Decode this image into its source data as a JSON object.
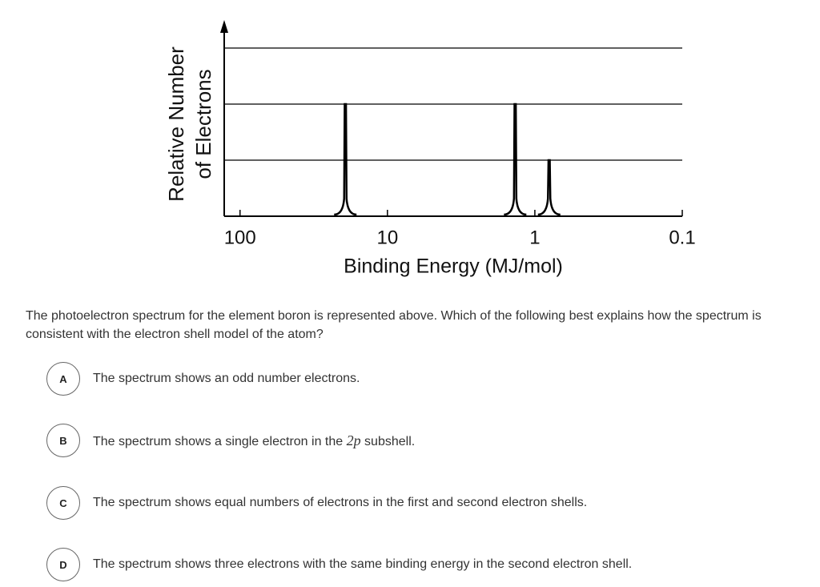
{
  "figure": {
    "chart_data": {
      "type": "spectrum",
      "y_label": [
        "Relative Number",
        "of Electrons"
      ],
      "x_label": "Binding Energy (MJ/mol)",
      "x": [
        19.3,
        1.36,
        0.8
      ],
      "values": [
        2,
        2,
        1
      ],
      "xlim": [
        128,
        0.1
      ],
      "xticks": [
        100,
        10,
        1,
        0.1
      ],
      "xscale": "log",
      "ylim": [
        0,
        3.5
      ],
      "yticks": [
        1,
        2,
        3
      ],
      "grid": true,
      "color": "#000000"
    }
  },
  "question": "The photoelectron spectrum for the element boron is represented above. Which of the following best explains how the spectrum is consistent with the electron shell model of the atom?",
  "options": [
    {
      "letter": "A",
      "text": [
        "The spectrum shows an odd number electrons."
      ]
    },
    {
      "letter": "B",
      "text": [
        "The spectrum shows a single electron in the ",
        "2p",
        " subshell."
      ]
    },
    {
      "letter": "C",
      "text": [
        "The spectrum shows equal numbers of electrons in the first and second electron shells."
      ]
    },
    {
      "letter": "D",
      "text": [
        "The spectrum shows three electrons with the same binding energy in the second electron shell."
      ]
    }
  ]
}
